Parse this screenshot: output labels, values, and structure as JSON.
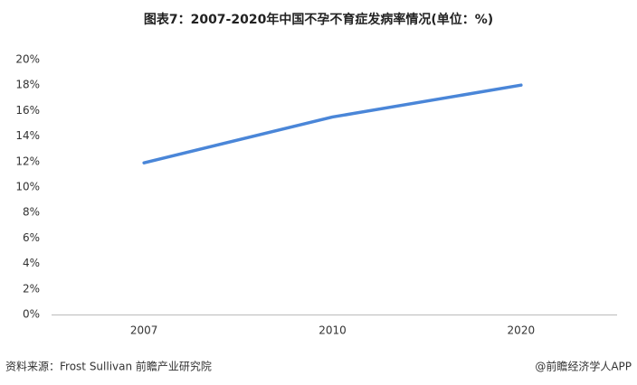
{
  "chart_data": {
    "type": "line",
    "title": "图表7：2007-2020年中国不孕不育症发病率情况(单位：%)",
    "categories": [
      "2007",
      "2010",
      "2020"
    ],
    "series": [
      {
        "name": null,
        "color": "#4a86d8",
        "values": [
          11.9,
          15.5,
          18.0
        ]
      }
    ],
    "ylim": [
      0,
      20
    ],
    "yticks": [
      {
        "value": 0,
        "label": "0%"
      },
      {
        "value": 2,
        "label": "2%"
      },
      {
        "value": 4,
        "label": "4%"
      },
      {
        "value": 6,
        "label": "6%"
      },
      {
        "value": 8,
        "label": "8%"
      },
      {
        "value": 10,
        "label": "10%"
      },
      {
        "value": 12,
        "label": "12%"
      },
      {
        "value": 14,
        "label": "14%"
      },
      {
        "value": 16,
        "label": "16%"
      },
      {
        "value": 18,
        "label": "18%"
      },
      {
        "value": 20,
        "label": "20%"
      }
    ],
    "grid": false,
    "source": "资料来源：Frost Sullivan 前瞻产业研究院",
    "credit": "@前瞻经济学人APP"
  }
}
